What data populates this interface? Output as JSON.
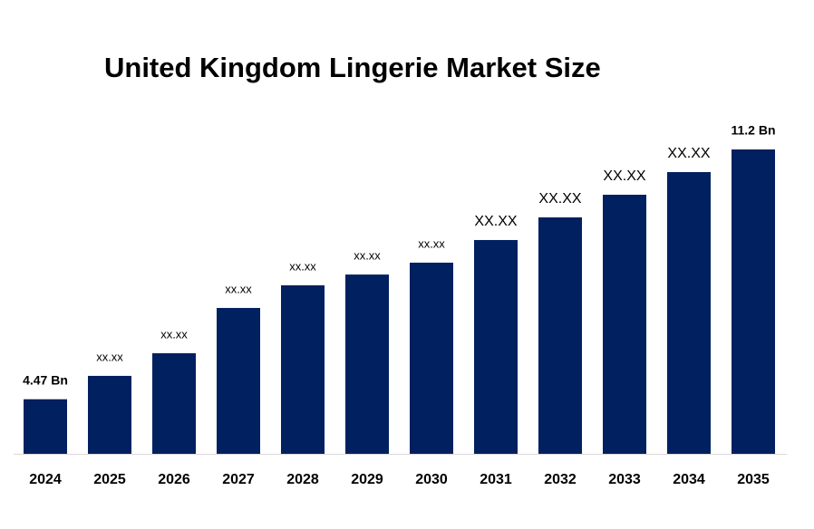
{
  "chart_data": {
    "type": "bar",
    "title": "United Kingdom Lingerie Market Size",
    "categories": [
      "2024",
      "2025",
      "2026",
      "2027",
      "2028",
      "2029",
      "2030",
      "2031",
      "2032",
      "2033",
      "2034",
      "2035"
    ],
    "values": [
      4.47,
      5.1,
      5.71,
      6.93,
      7.54,
      7.83,
      8.15,
      8.76,
      9.37,
      9.98,
      10.59,
      11.2
    ],
    "value_labels": [
      "4.47 Bn",
      "xx.xx",
      "xx.xx",
      "xx.xx",
      "xx.xx",
      "xx.xx",
      "xx.xx",
      "XX.XX",
      "XX.XX",
      "XX.XX",
      "XX.XX",
      "11.2 Bn"
    ],
    "color": "#002060",
    "ylim": [
      3,
      11.2
    ]
  }
}
